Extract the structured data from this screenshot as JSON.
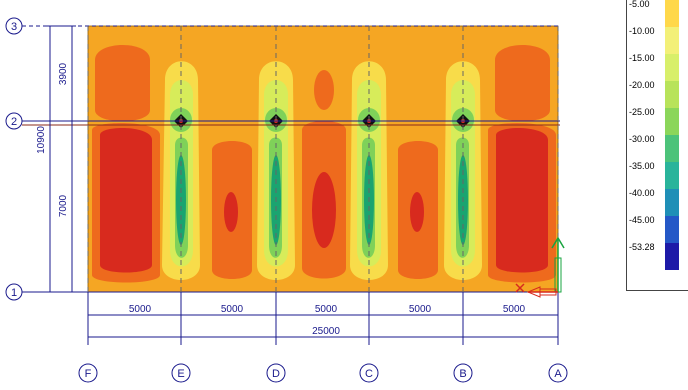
{
  "grid_rows": [
    "3",
    "2",
    "1"
  ],
  "grid_cols": [
    "F",
    "E",
    "D",
    "C",
    "B",
    "A"
  ],
  "vertical_dims": {
    "top_span": "3900",
    "bottom_span": "7000",
    "total": "10900"
  },
  "horizontal_dims": {
    "spans": [
      "5000",
      "5000",
      "5000",
      "5000",
      "5000"
    ],
    "total": "25000"
  },
  "legend": {
    "labels": [
      "-5.00",
      "-10.00",
      "-15.00",
      "-20.00",
      "-25.00",
      "-30.00",
      "-35.00",
      "-40.00",
      "-45.00",
      "-53.28"
    ],
    "colors": [
      "#ffd84a",
      "#f3f078",
      "#d8ef6a",
      "#b8e35a",
      "#8bd65a",
      "#4cc37a",
      "#29b49b",
      "#1f8fb7",
      "#2458c7",
      "#1d1aa8"
    ]
  },
  "contour_colors": {
    "background": "#f5a623",
    "orange_red": "#ee6a1d",
    "red": "#d82a1e",
    "dark_red": "#c41f1f",
    "yellow": "#f8dc4a",
    "light_green": "#d7ec5a",
    "green": "#7fd159",
    "dark_green": "#1aa470",
    "grid_blue": "#1a1a8c"
  }
}
